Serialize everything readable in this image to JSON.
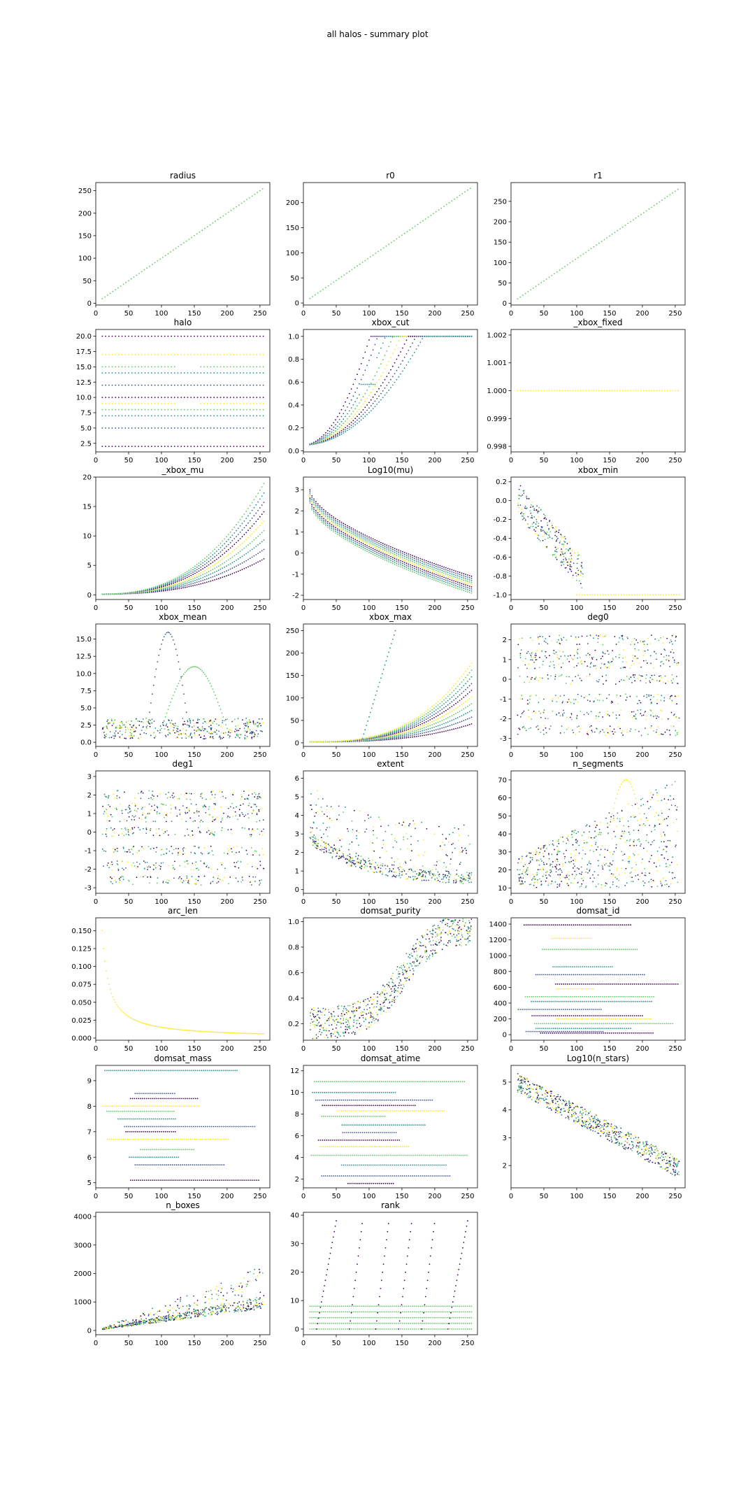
{
  "figure": {
    "suptitle": "all halos - summary plot"
  },
  "palette": [
    "#440154",
    "#3b528b",
    "#21918c",
    "#5ec962",
    "#fde725"
  ],
  "chart_data": [
    {
      "key": "radius",
      "title": "radius",
      "type": "scatter",
      "xlim": [
        0,
        265
      ],
      "ylim": [
        -4,
        268
      ],
      "xticks": [
        0,
        50,
        100,
        150,
        200,
        250
      ],
      "yticks": [
        0,
        50,
        100,
        150,
        200,
        250
      ],
      "yfmt": "int",
      "gen": {
        "kind": "identity",
        "slope": 1.0
      }
    },
    {
      "key": "r0",
      "title": "r0",
      "type": "scatter",
      "xlim": [
        0,
        265
      ],
      "ylim": [
        -4,
        240
      ],
      "xticks": [
        0,
        50,
        100,
        150,
        200,
        250
      ],
      "yticks": [
        0,
        50,
        100,
        150,
        200
      ],
      "yfmt": "int",
      "gen": {
        "kind": "identity",
        "slope": 0.9
      }
    },
    {
      "key": "r1",
      "title": "r1",
      "type": "scatter",
      "xlim": [
        0,
        265
      ],
      "ylim": [
        -4,
        296
      ],
      "xticks": [
        0,
        50,
        100,
        150,
        200,
        250
      ],
      "yticks": [
        0,
        50,
        100,
        150,
        200,
        250
      ],
      "yfmt": "int",
      "gen": {
        "kind": "identity",
        "slope": 1.1
      }
    },
    {
      "key": "halo",
      "title": "halo",
      "type": "scatter",
      "xlim": [
        0,
        265
      ],
      "ylim": [
        1.1,
        21.1
      ],
      "xticks": [
        0,
        50,
        100,
        150,
        200,
        250
      ],
      "yticks": [
        2.5,
        5.0,
        7.5,
        10.0,
        12.5,
        15.0,
        17.5,
        20.0
      ],
      "yfmt": "1",
      "gen": {
        "kind": "hlines",
        "levels": [
          2,
          5,
          7,
          8,
          9,
          10,
          12,
          14,
          15,
          17,
          20
        ]
      }
    },
    {
      "key": "xbox_cut",
      "title": "xbox_cut",
      "type": "scatter",
      "xlim": [
        0,
        265
      ],
      "ylim": [
        -0.01,
        1.06
      ],
      "xticks": [
        0,
        50,
        100,
        150,
        200,
        250
      ],
      "yticks": [
        0.0,
        0.2,
        0.4,
        0.6,
        0.8,
        1.0
      ],
      "yfmt": "1",
      "gen": {
        "kind": "xboxcut"
      }
    },
    {
      "key": "xbox_fixed",
      "title": "_xbox_fixed",
      "type": "scatter",
      "xlim": [
        0,
        265
      ],
      "ylim": [
        0.9978,
        1.0022
      ],
      "xticks": [
        0,
        50,
        100,
        150,
        200,
        250
      ],
      "yticks": [
        0.998,
        0.999,
        1.0,
        1.001,
        1.002
      ],
      "yfmt": "3",
      "gen": {
        "kind": "const",
        "value": 1.0
      }
    },
    {
      "key": "xbox_mu",
      "title": "_xbox_mu",
      "type": "scatter",
      "xlim": [
        0,
        265
      ],
      "ylim": [
        -0.8,
        20
      ],
      "xticks": [
        0,
        50,
        100,
        150,
        200,
        250
      ],
      "yticks": [
        0,
        5,
        10,
        15,
        20
      ],
      "yfmt": "int",
      "gen": {
        "kind": "mu"
      }
    },
    {
      "key": "log_mu",
      "title": "Log10(mu)",
      "type": "scatter",
      "xlim": [
        0,
        265
      ],
      "ylim": [
        -2.2,
        3.6
      ],
      "xticks": [
        0,
        50,
        100,
        150,
        200,
        250
      ],
      "yticks": [
        -2,
        -1,
        0,
        1,
        2,
        3
      ],
      "yfmt": "int",
      "gen": {
        "kind": "logmu"
      }
    },
    {
      "key": "xbox_min",
      "title": "xbox_min",
      "type": "scatter",
      "xlim": [
        0,
        265
      ],
      "ylim": [
        -1.05,
        0.25
      ],
      "xticks": [
        0,
        50,
        100,
        150,
        200,
        250
      ],
      "yticks": [
        -1.0,
        -0.8,
        -0.6,
        -0.4,
        -0.2,
        0.0,
        0.2
      ],
      "yfmt": "1",
      "gen": {
        "kind": "xboxmin"
      }
    },
    {
      "key": "xbox_mean",
      "title": "xbox_mean",
      "type": "scatter",
      "xlim": [
        0,
        265
      ],
      "ylim": [
        -0.6,
        17.2
      ],
      "xticks": [
        0,
        50,
        100,
        150,
        200,
        250
      ],
      "yticks": [
        0.0,
        2.5,
        5.0,
        7.5,
        10.0,
        12.5,
        15.0
      ],
      "yfmt": "1",
      "gen": {
        "kind": "xboxmean"
      }
    },
    {
      "key": "xbox_max",
      "title": "xbox_max",
      "type": "scatter",
      "xlim": [
        0,
        265
      ],
      "ylim": [
        -8,
        265
      ],
      "xticks": [
        0,
        50,
        100,
        150,
        200,
        250
      ],
      "yticks": [
        0,
        50,
        100,
        150,
        200,
        250
      ],
      "yfmt": "int",
      "gen": {
        "kind": "xboxmax"
      }
    },
    {
      "key": "deg0",
      "title": "deg0",
      "type": "scatter",
      "xlim": [
        0,
        265
      ],
      "ylim": [
        -3.4,
        2.8
      ],
      "xticks": [
        0,
        50,
        100,
        150,
        200,
        250
      ],
      "yticks": [
        -3,
        -2,
        -1,
        0,
        1,
        2
      ],
      "yfmt": "int",
      "gen": {
        "kind": "deg"
      }
    },
    {
      "key": "deg1",
      "title": "deg1",
      "type": "scatter",
      "xlim": [
        0,
        265
      ],
      "ylim": [
        -3.3,
        3.3
      ],
      "xticks": [
        0,
        50,
        100,
        150,
        200,
        250
      ],
      "yticks": [
        -3,
        -2,
        -1,
        0,
        1,
        2,
        3
      ],
      "yfmt": "int",
      "gen": {
        "kind": "deg"
      }
    },
    {
      "key": "extent",
      "title": "extent",
      "type": "scatter",
      "xlim": [
        0,
        265
      ],
      "ylim": [
        -0.2,
        6.4
      ],
      "xticks": [
        0,
        50,
        100,
        150,
        200,
        250
      ],
      "yticks": [
        0,
        1,
        2,
        3,
        4,
        5,
        6
      ],
      "yfmt": "int",
      "gen": {
        "kind": "extent"
      }
    },
    {
      "key": "n_segments",
      "title": "n_segments",
      "type": "scatter",
      "xlim": [
        0,
        265
      ],
      "ylim": [
        7,
        75
      ],
      "xticks": [
        0,
        50,
        100,
        150,
        200,
        250
      ],
      "yticks": [
        10,
        20,
        30,
        40,
        50,
        60,
        70
      ],
      "yfmt": "int",
      "gen": {
        "kind": "nseg"
      }
    },
    {
      "key": "arc_len",
      "title": "arc_len",
      "type": "scatter",
      "xlim": [
        0,
        265
      ],
      "ylim": [
        -0.003,
        0.168
      ],
      "xticks": [
        0,
        50,
        100,
        150,
        200,
        250
      ],
      "yticks": [
        0.0,
        0.025,
        0.05,
        0.075,
        0.1,
        0.125,
        0.15
      ],
      "yfmt": "3",
      "gen": {
        "kind": "arclen"
      }
    },
    {
      "key": "domsat_purity",
      "title": "domsat_purity",
      "type": "scatter",
      "xlim": [
        0,
        265
      ],
      "ylim": [
        0.07,
        1.03
      ],
      "xticks": [
        0,
        50,
        100,
        150,
        200,
        250
      ],
      "yticks": [
        0.2,
        0.4,
        0.6,
        0.8,
        1.0
      ],
      "yfmt": "1",
      "gen": {
        "kind": "purity"
      }
    },
    {
      "key": "domsat_id",
      "title": "domsat_id",
      "type": "scatter",
      "xlim": [
        0,
        265
      ],
      "ylim": [
        -70,
        1480
      ],
      "xticks": [
        0,
        50,
        100,
        150,
        200,
        250
      ],
      "yticks": [
        0,
        200,
        400,
        600,
        800,
        1000,
        1200,
        1400
      ],
      "yfmt": "int",
      "gen": {
        "kind": "segs",
        "levels": [
          20,
          40,
          80,
          140,
          200,
          240,
          320,
          420,
          480,
          580,
          640,
          760,
          860,
          1080,
          1220,
          1390
        ]
      }
    },
    {
      "key": "domsat_mass",
      "title": "domsat_mass",
      "type": "scatter",
      "xlim": [
        0,
        265
      ],
      "ylim": [
        4.8,
        9.6
      ],
      "xticks": [
        0,
        50,
        100,
        150,
        200,
        250
      ],
      "yticks": [
        5,
        6,
        7,
        8,
        9
      ],
      "yfmt": "int",
      "gen": {
        "kind": "segs",
        "levels": [
          5.1,
          5.7,
          6.0,
          6.3,
          6.7,
          7.0,
          7.2,
          7.5,
          7.8,
          8.0,
          8.3,
          8.5,
          9.4
        ]
      }
    },
    {
      "key": "domsat_atime",
      "title": "domsat_atime",
      "type": "scatter",
      "xlim": [
        0,
        265
      ],
      "ylim": [
        1.2,
        12.5
      ],
      "xticks": [
        0,
        50,
        100,
        150,
        200,
        250
      ],
      "yticks": [
        2,
        4,
        6,
        8,
        10,
        12
      ],
      "yfmt": "int",
      "gen": {
        "kind": "segs",
        "levels": [
          1.6,
          2.3,
          3.3,
          4.2,
          5.0,
          5.6,
          6.3,
          7.0,
          7.8,
          8.3,
          8.8,
          9.3,
          10.0,
          11.0
        ]
      }
    },
    {
      "key": "log_nstars",
      "title": "Log10(n_stars)",
      "type": "scatter",
      "xlim": [
        0,
        265
      ],
      "ylim": [
        1.2,
        5.6
      ],
      "xticks": [
        0,
        50,
        100,
        150,
        200,
        250
      ],
      "yticks": [
        2,
        3,
        4,
        5
      ],
      "yfmt": "int",
      "gen": {
        "kind": "nstars"
      }
    },
    {
      "key": "n_boxes",
      "title": "n_boxes",
      "type": "scatter",
      "xlim": [
        0,
        265
      ],
      "ylim": [
        -150,
        4150
      ],
      "xticks": [
        0,
        50,
        100,
        150,
        200,
        250
      ],
      "yticks": [
        0,
        1000,
        2000,
        3000,
        4000
      ],
      "yfmt": "int",
      "gen": {
        "kind": "nboxes"
      }
    },
    {
      "key": "rank",
      "title": "rank",
      "type": "scatter",
      "xlim": [
        0,
        265
      ],
      "ylim": [
        -2,
        41
      ],
      "xticks": [
        0,
        50,
        100,
        150,
        200,
        250
      ],
      "yticks": [
        0,
        10,
        20,
        30,
        40
      ],
      "yfmt": "int",
      "gen": {
        "kind": "rank"
      }
    }
  ]
}
